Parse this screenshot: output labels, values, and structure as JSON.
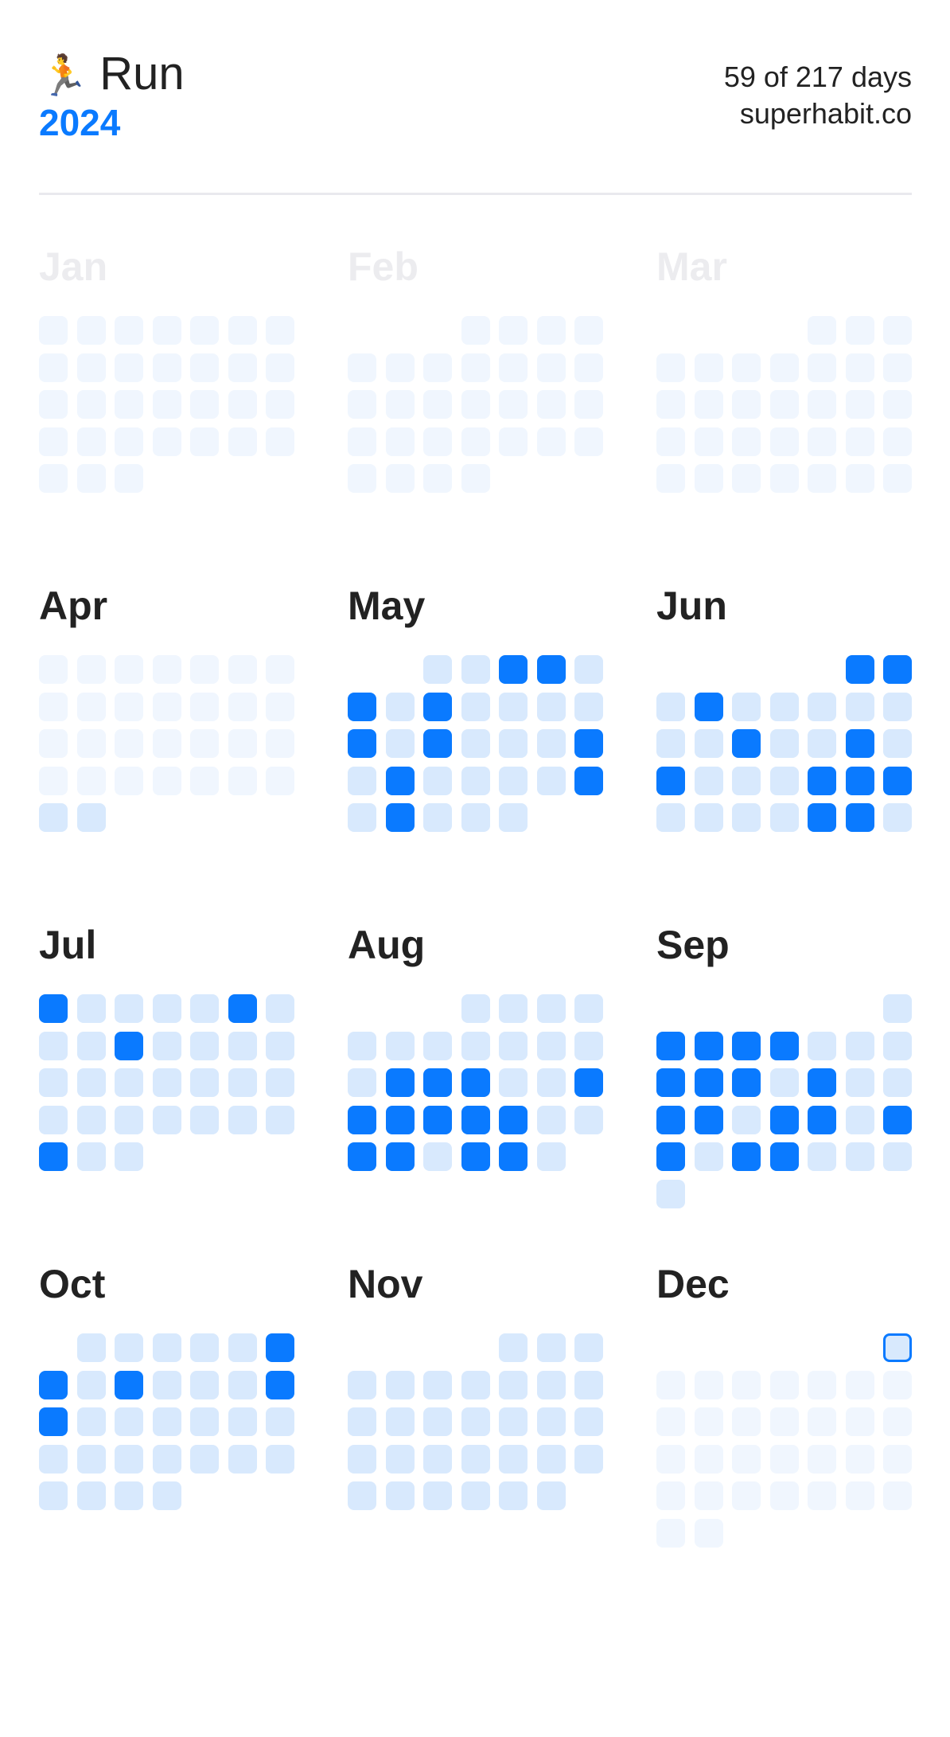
{
  "header": {
    "icon": "runner-emoji",
    "emoji": "🏃",
    "title": "Run",
    "year": "2024",
    "progress": "59 of 217 days",
    "site": "superhabit.co"
  },
  "colors": {
    "accent": "#0a7aff",
    "missed": "#d8e9fd",
    "inactive": "#f0f6fe"
  },
  "tracking": {
    "start": "2024-04-29",
    "today": "2024-12-01",
    "week_start": "Monday"
  },
  "months": [
    {
      "label": "Jan",
      "done": []
    },
    {
      "label": "Feb",
      "done": []
    },
    {
      "label": "Mar",
      "done": []
    },
    {
      "label": "Apr",
      "done": []
    },
    {
      "label": "May",
      "done": [
        3,
        4,
        6,
        8,
        13,
        15,
        19,
        21,
        26,
        28
      ]
    },
    {
      "label": "Jun",
      "done": [
        1,
        2,
        4,
        12,
        15,
        17,
        21,
        22,
        23,
        28,
        29
      ]
    },
    {
      "label": "Jul",
      "done": [
        1,
        6,
        10,
        29
      ]
    },
    {
      "label": "Aug",
      "done": [
        13,
        14,
        15,
        18,
        19,
        20,
        21,
        22,
        23,
        26,
        27,
        29,
        30
      ]
    },
    {
      "label": "Sep",
      "done": [
        2,
        3,
        4,
        5,
        9,
        10,
        11,
        13,
        16,
        17,
        19,
        20,
        22,
        23,
        25,
        26
      ]
    },
    {
      "label": "Oct",
      "done": [
        6,
        7,
        9,
        13,
        14
      ]
    },
    {
      "label": "Nov",
      "done": []
    },
    {
      "label": "Dec",
      "done": []
    }
  ]
}
